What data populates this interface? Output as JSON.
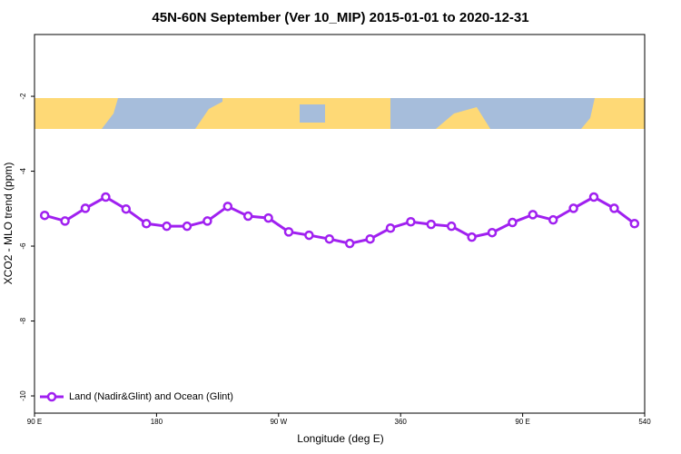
{
  "chart_data": {
    "type": "line",
    "title": "45N-60N September (Ver 10_MIP)   2015-01-01 to 2020-12-31",
    "x_label": "Longitude (deg E)",
    "y_label": "XCO2 - MLO trend (ppm)",
    "x": [
      97.5,
      112.5,
      127.5,
      142.5,
      157.5,
      172.5,
      187.5,
      202.5,
      217.5,
      232.5,
      247.5,
      262.5,
      277.5,
      292.5,
      307.5,
      322.5,
      337.5,
      352.5,
      367.5,
      382.5,
      397.5,
      412.5,
      427.5,
      442.5,
      457.5,
      472.5,
      487.5,
      502.5,
      517.5,
      532.5
    ],
    "series": [
      {
        "name": "Land (Nadir&Glint) and Ocean (Glint)",
        "color": "#a020f0",
        "values": [
          -5.18,
          -5.33,
          -4.99,
          -4.69,
          -5.01,
          -5.4,
          -5.47,
          -5.47,
          -5.33,
          -4.94,
          -5.2,
          -5.25,
          -5.62,
          -5.71,
          -5.81,
          -5.93,
          -5.81,
          -5.52,
          -5.35,
          -5.42,
          -5.47,
          -5.76,
          -5.64,
          -5.37,
          -5.16,
          -5.3,
          -4.99,
          -4.69,
          -4.99,
          -5.4
        ]
      }
    ],
    "xlim": [
      90,
      540
    ],
    "xticks": [
      {
        "value": 90,
        "label": "90 E"
      },
      180,
      {
        "value": 270,
        "label": "90 W"
      },
      360,
      {
        "value": 450,
        "label": "90 E"
      },
      540
    ],
    "ylim": [
      -10.46,
      -0.35
    ],
    "yticks": [
      -2,
      -4,
      -6,
      -8,
      -10
    ],
    "legend": "bottom-left"
  }
}
